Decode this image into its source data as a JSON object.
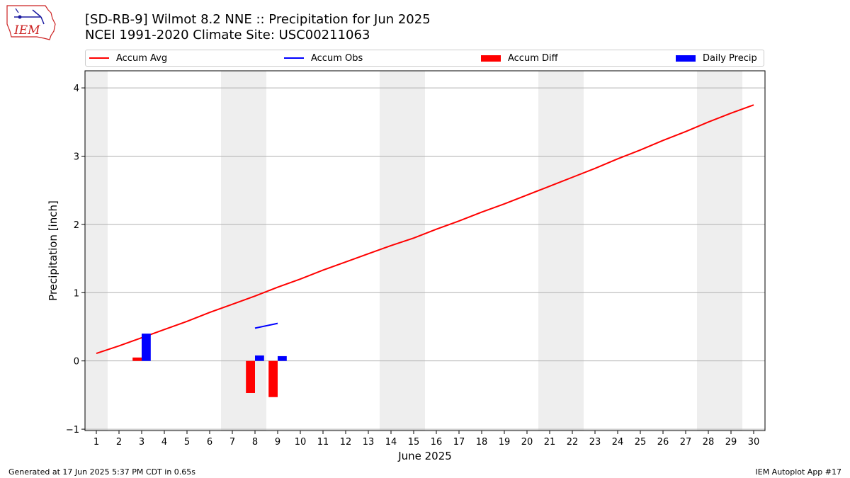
{
  "header": {
    "title_line1": "[SD-RB-9] Wilmot 8.2 NNE :: Precipitation for Jun 2025",
    "title_line2": "NCEI 1991-2020 Climate Site: USC00211063",
    "logo_text": "IEM"
  },
  "legend": {
    "items": [
      {
        "label": "Accum Avg",
        "color": "#ff0000",
        "kind": "line"
      },
      {
        "label": "Accum Obs",
        "color": "#0000ff",
        "kind": "line"
      },
      {
        "label": "Accum Diff",
        "color": "#ff0000",
        "kind": "bar"
      },
      {
        "label": "Daily Precip",
        "color": "#0000ff",
        "kind": "bar"
      }
    ]
  },
  "footer": {
    "left": "Generated at 17 Jun 2025 5:37 PM CDT in 0.65s",
    "right": "IEM Autoplot App #17"
  },
  "chart_data": {
    "type": "bar",
    "xlabel": "June 2025",
    "ylabel": "Precipitation [inch]",
    "xlim": [
      0.5,
      30.5
    ],
    "ylim": [
      -1.02,
      4.25
    ],
    "x_ticks": [
      1,
      2,
      3,
      4,
      5,
      6,
      7,
      8,
      9,
      10,
      11,
      12,
      13,
      14,
      15,
      16,
      17,
      18,
      19,
      20,
      21,
      22,
      23,
      24,
      25,
      26,
      27,
      28,
      29,
      30
    ],
    "y_ticks": [
      -1,
      0,
      1,
      2,
      3,
      4
    ],
    "grid": "y",
    "weekend_shading_days": [
      1,
      7,
      8,
      14,
      15,
      21,
      22,
      28,
      29
    ],
    "series": [
      {
        "name": "Accum Avg",
        "kind": "line",
        "color": "#ff0000",
        "x": [
          1,
          2,
          3,
          4,
          5,
          6,
          7,
          8,
          9,
          10,
          11,
          12,
          13,
          14,
          15,
          16,
          17,
          18,
          19,
          20,
          21,
          22,
          23,
          24,
          25,
          26,
          27,
          28,
          29,
          30
        ],
        "values": [
          0.11,
          0.22,
          0.34,
          0.46,
          0.58,
          0.71,
          0.83,
          0.95,
          1.08,
          1.2,
          1.33,
          1.45,
          1.57,
          1.69,
          1.8,
          1.93,
          2.05,
          2.18,
          2.3,
          2.43,
          2.56,
          2.69,
          2.82,
          2.96,
          3.09,
          3.23,
          3.36,
          3.5,
          3.63,
          3.75
        ]
      },
      {
        "name": "Accum Obs",
        "kind": "line",
        "color": "#0000ff",
        "x": [
          8,
          9
        ],
        "values": [
          0.48,
          0.55
        ]
      },
      {
        "name": "Accum Diff",
        "kind": "bar",
        "color": "#ff0000",
        "x": [
          3,
          8,
          9
        ],
        "values": [
          0.05,
          -0.47,
          -0.53
        ]
      },
      {
        "name": "Daily Precip",
        "kind": "bar",
        "color": "#0000ff",
        "x": [
          3,
          8,
          9
        ],
        "values": [
          0.4,
          0.08,
          0.07
        ]
      }
    ]
  }
}
